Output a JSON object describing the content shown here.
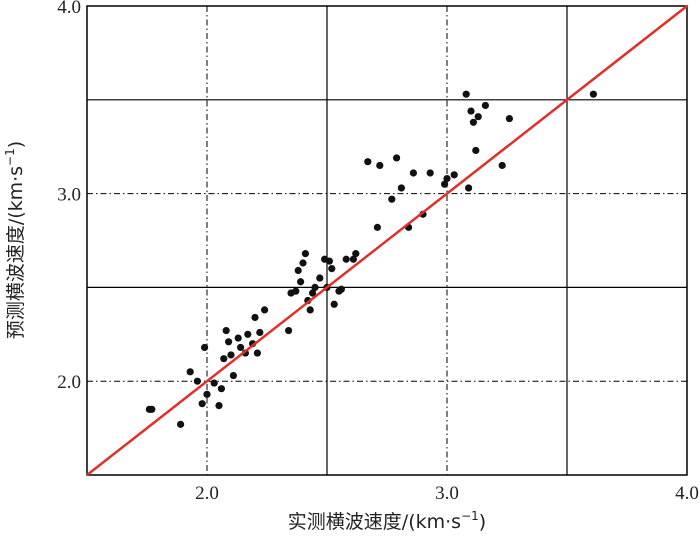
{
  "chart_data": {
    "type": "scatter",
    "xlabel": {
      "main": "实测横波速度/(km·s",
      "sup": "−1",
      "close": ")"
    },
    "ylabel": {
      "main": "预测横波速度/(km·s",
      "sup": "−1",
      "close": ")"
    },
    "xlim": [
      1.5,
      4.0
    ],
    "ylim": [
      1.5,
      4.0
    ],
    "x_ticks": [
      2.0,
      3.0,
      4.0
    ],
    "x_tick_labels": [
      "2.0",
      "3.0",
      "4.0"
    ],
    "y_ticks": [
      2.0,
      3.0,
      4.0
    ],
    "y_tick_labels": [
      "2.0",
      "3.0",
      "4.0"
    ],
    "grid": true,
    "grid_solid": [
      2.5,
      3.5
    ],
    "grid_dashed": [
      2.0,
      3.0
    ],
    "point_color": "#111111",
    "line_color": "#e0302a",
    "reference_line": {
      "x": [
        1.5,
        4.0
      ],
      "y": [
        1.5,
        4.0
      ]
    },
    "points": [
      [
        1.76,
        1.85
      ],
      [
        1.77,
        1.85
      ],
      [
        1.89,
        1.77
      ],
      [
        1.93,
        2.05
      ],
      [
        1.96,
        2.0
      ],
      [
        1.98,
        1.88
      ],
      [
        1.99,
        2.18
      ],
      [
        2.0,
        1.93
      ],
      [
        2.03,
        1.99
      ],
      [
        2.05,
        1.87
      ],
      [
        2.06,
        1.96
      ],
      [
        2.07,
        2.12
      ],
      [
        2.08,
        2.27
      ],
      [
        2.09,
        2.21
      ],
      [
        2.1,
        2.14
      ],
      [
        2.11,
        2.03
      ],
      [
        2.13,
        2.23
      ],
      [
        2.14,
        2.18
      ],
      [
        2.16,
        2.15
      ],
      [
        2.17,
        2.25
      ],
      [
        2.19,
        2.2
      ],
      [
        2.2,
        2.34
      ],
      [
        2.21,
        2.15
      ],
      [
        2.22,
        2.26
      ],
      [
        2.24,
        2.38
      ],
      [
        2.34,
        2.27
      ],
      [
        2.35,
        2.47
      ],
      [
        2.37,
        2.48
      ],
      [
        2.38,
        2.59
      ],
      [
        2.39,
        2.53
      ],
      [
        2.4,
        2.63
      ],
      [
        2.41,
        2.68
      ],
      [
        2.42,
        2.43
      ],
      [
        2.43,
        2.38
      ],
      [
        2.44,
        2.47
      ],
      [
        2.45,
        2.5
      ],
      [
        2.47,
        2.55
      ],
      [
        2.49,
        2.65
      ],
      [
        2.5,
        2.5
      ],
      [
        2.51,
        2.64
      ],
      [
        2.52,
        2.6
      ],
      [
        2.53,
        2.41
      ],
      [
        2.55,
        2.48
      ],
      [
        2.56,
        2.49
      ],
      [
        2.58,
        2.65
      ],
      [
        2.61,
        2.65
      ],
      [
        2.62,
        2.68
      ],
      [
        2.67,
        3.17
      ],
      [
        2.71,
        2.82
      ],
      [
        2.72,
        3.15
      ],
      [
        2.77,
        2.97
      ],
      [
        2.79,
        3.19
      ],
      [
        2.81,
        3.03
      ],
      [
        2.84,
        2.82
      ],
      [
        2.86,
        3.11
      ],
      [
        2.9,
        2.89
      ],
      [
        2.93,
        3.11
      ],
      [
        2.99,
        3.05
      ],
      [
        3.0,
        3.08
      ],
      [
        3.03,
        3.1
      ],
      [
        3.08,
        3.53
      ],
      [
        3.09,
        3.03
      ],
      [
        3.1,
        3.44
      ],
      [
        3.11,
        3.38
      ],
      [
        3.12,
        3.23
      ],
      [
        3.13,
        3.41
      ],
      [
        3.16,
        3.47
      ],
      [
        3.23,
        3.15
      ],
      [
        3.26,
        3.4
      ],
      [
        3.61,
        3.53
      ]
    ]
  }
}
